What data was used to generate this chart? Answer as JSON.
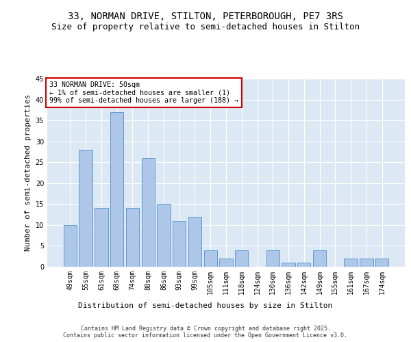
{
  "title1": "33, NORMAN DRIVE, STILTON, PETERBOROUGH, PE7 3RS",
  "title2": "Size of property relative to semi-detached houses in Stilton",
  "xlabel": "Distribution of semi-detached houses by size in Stilton",
  "ylabel": "Number of semi-detached properties",
  "categories": [
    "49sqm",
    "55sqm",
    "61sqm",
    "68sqm",
    "74sqm",
    "80sqm",
    "86sqm",
    "93sqm",
    "99sqm",
    "105sqm",
    "111sqm",
    "118sqm",
    "124sqm",
    "130sqm",
    "136sqm",
    "142sqm",
    "149sqm",
    "155sqm",
    "161sqm",
    "167sqm",
    "174sqm"
  ],
  "values": [
    10,
    28,
    14,
    37,
    14,
    26,
    15,
    11,
    12,
    4,
    2,
    4,
    0,
    4,
    1,
    1,
    4,
    0,
    2,
    2,
    2
  ],
  "bar_color": "#aec6e8",
  "bar_edge_color": "#5b9bd5",
  "annotation_box_text": "33 NORMAN DRIVE: 50sqm\n← 1% of semi-detached houses are smaller (1)\n99% of semi-detached houses are larger (188) →",
  "annotation_box_color": "#ffffff",
  "annotation_box_edge_color": "#cc0000",
  "ylim": [
    0,
    45
  ],
  "yticks": [
    0,
    5,
    10,
    15,
    20,
    25,
    30,
    35,
    40,
    45
  ],
  "background_color": "#dde8f5",
  "grid_color": "#ffffff",
  "footer_text": "Contains HM Land Registry data © Crown copyright and database right 2025.\nContains public sector information licensed under the Open Government Licence v3.0.",
  "title_fontsize": 10,
  "subtitle_fontsize": 9,
  "axis_label_fontsize": 8,
  "tick_fontsize": 7
}
